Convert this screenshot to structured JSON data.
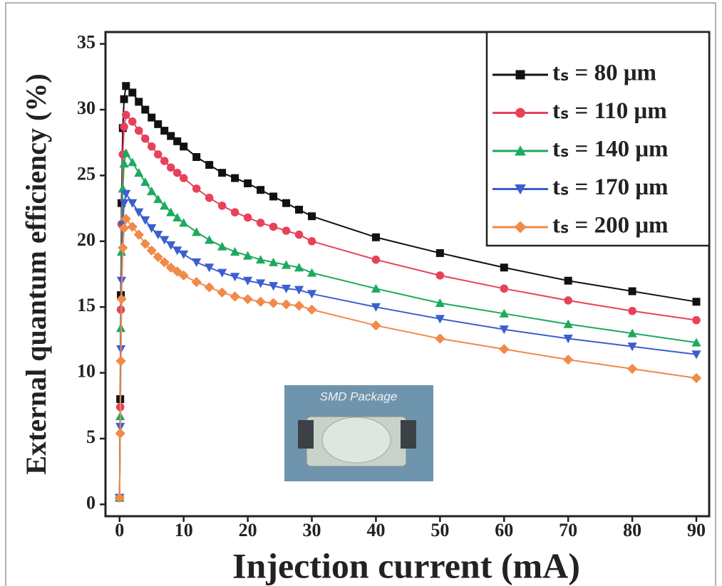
{
  "chart_data": {
    "type": "line",
    "xlabel": "Injection current (mA)",
    "ylabel": "External quantum efficiency (%)",
    "inset_label": "SMD Package",
    "x": [
      0,
      0.1,
      0.2,
      0.3,
      0.5,
      0.7,
      1,
      2,
      3,
      4,
      5,
      6,
      7,
      8,
      9,
      10,
      12,
      14,
      16,
      18,
      20,
      22,
      24,
      26,
      28,
      30,
      40,
      50,
      60,
      70,
      80,
      90
    ],
    "series": [
      {
        "name": "tₛ = 80 μm",
        "color": "#111111",
        "marker": "square",
        "values": [
          0.5,
          8.0,
          15.9,
          22.9,
          28.6,
          30.8,
          31.8,
          31.3,
          30.6,
          30.0,
          29.4,
          28.9,
          28.4,
          28.0,
          27.6,
          27.2,
          26.4,
          25.8,
          25.2,
          24.8,
          24.4,
          23.9,
          23.4,
          22.9,
          22.4,
          21.9,
          20.3,
          19.1,
          18.0,
          17.0,
          16.2,
          15.4
        ]
      },
      {
        "name": "tₛ = 110 μm",
        "color": "#e8415a",
        "marker": "circle",
        "values": [
          0.5,
          7.4,
          14.8,
          21.3,
          26.6,
          28.7,
          29.6,
          29.1,
          28.4,
          27.8,
          27.2,
          26.6,
          26.1,
          25.6,
          25.2,
          24.8,
          24.0,
          23.3,
          22.7,
          22.2,
          21.8,
          21.4,
          21.1,
          20.8,
          20.5,
          20.0,
          18.6,
          17.4,
          16.4,
          15.5,
          14.7,
          14.0
        ]
      },
      {
        "name": "tₛ = 140 μm",
        "color": "#1daa5e",
        "marker": "triangle-up",
        "values": [
          0.5,
          6.7,
          13.4,
          19.2,
          24.0,
          25.9,
          26.7,
          26.0,
          25.2,
          24.5,
          23.8,
          23.2,
          22.7,
          22.2,
          21.8,
          21.4,
          20.7,
          20.1,
          19.6,
          19.2,
          18.9,
          18.6,
          18.4,
          18.2,
          18.0,
          17.6,
          16.4,
          15.3,
          14.5,
          13.7,
          13.0,
          12.3
        ]
      },
      {
        "name": "tₛ = 170 μm",
        "color": "#3b5fcf",
        "marker": "triangle-down",
        "values": [
          0.5,
          5.9,
          11.8,
          17.0,
          21.2,
          22.9,
          23.6,
          22.9,
          22.2,
          21.6,
          21.0,
          20.5,
          20.1,
          19.7,
          19.3,
          19.0,
          18.4,
          18.0,
          17.6,
          17.3,
          17.0,
          16.8,
          16.6,
          16.4,
          16.3,
          16.0,
          15.0,
          14.1,
          13.3,
          12.6,
          12.0,
          11.4
        ]
      },
      {
        "name": "tₛ = 200 μm",
        "color": "#f08a4b",
        "marker": "diamond",
        "values": [
          0.5,
          5.4,
          10.9,
          15.6,
          19.5,
          21.0,
          21.7,
          21.1,
          20.5,
          19.8,
          19.3,
          18.8,
          18.4,
          18.0,
          17.7,
          17.4,
          16.9,
          16.5,
          16.1,
          15.8,
          15.6,
          15.4,
          15.3,
          15.2,
          15.1,
          14.8,
          13.6,
          12.6,
          11.8,
          11.0,
          10.3,
          9.6
        ]
      }
    ],
    "xlim": [
      -2.2,
      92.0
    ],
    "ylim": [
      -0.9,
      35.9
    ],
    "xticks": [
      0,
      10,
      20,
      30,
      40,
      50,
      60,
      70,
      80,
      90
    ],
    "yticks": [
      0,
      5,
      10,
      15,
      20,
      25,
      30,
      35
    ],
    "legend": "upper right"
  }
}
